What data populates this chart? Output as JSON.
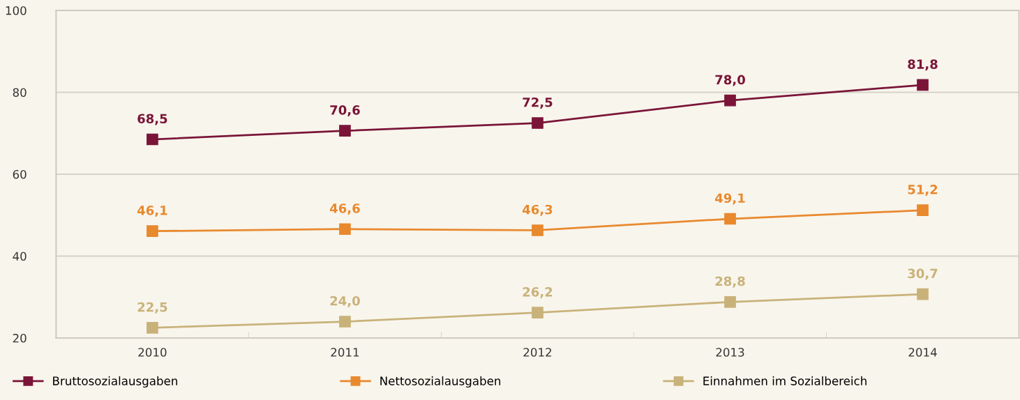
{
  "chart_data": {
    "type": "line",
    "categories": [
      "2010",
      "2011",
      "2012",
      "2013",
      "2014"
    ],
    "series": [
      {
        "name": "Bruttosozialausgaben",
        "color": "#7a1538",
        "values": [
          68.5,
          70.6,
          72.5,
          78.0,
          81.8
        ],
        "value_labels": [
          "68,5",
          "70,6",
          "72,5",
          "78,0",
          "81,8"
        ]
      },
      {
        "name": "Nettosozialausgaben",
        "color": "#e8892e",
        "values": [
          46.1,
          46.6,
          46.3,
          49.1,
          51.2
        ],
        "value_labels": [
          "46,1",
          "46,6",
          "46,3",
          "49,1",
          "51,2"
        ]
      },
      {
        "name": "Einnahmen im Sozialbereich",
        "color": "#c9b27a",
        "values": [
          22.5,
          24.0,
          26.2,
          28.8,
          30.7
        ],
        "value_labels": [
          "22,5",
          "24,0",
          "26,2",
          "28,8",
          "30,7"
        ]
      }
    ],
    "ylim": [
      20,
      100
    ],
    "yticks": [
      20,
      40,
      60,
      80,
      100
    ],
    "grid": "y",
    "legend": "bottom",
    "marker": "square",
    "line_style": "solid"
  }
}
